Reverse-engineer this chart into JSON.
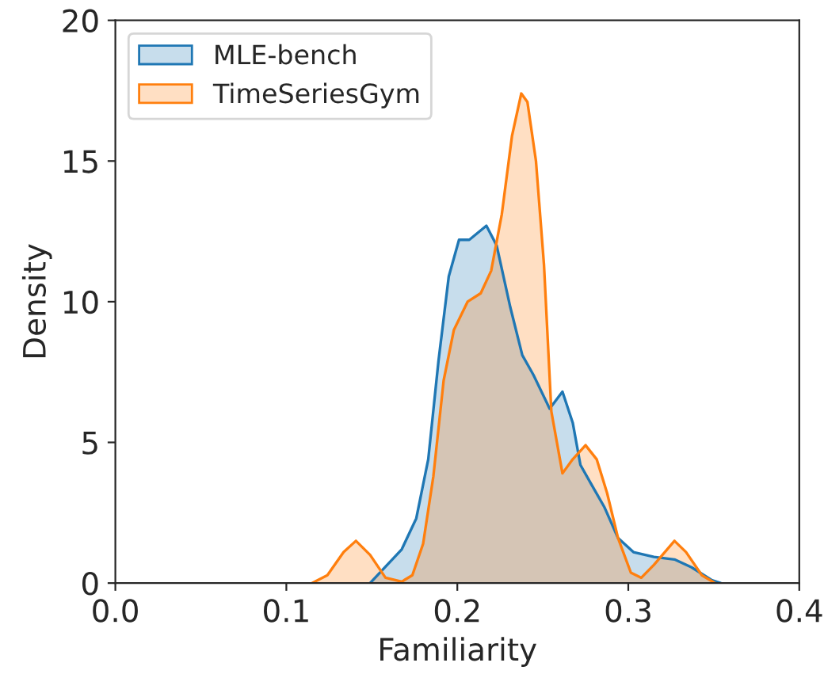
{
  "chart_data": {
    "type": "area",
    "xlabel": "Familiarity",
    "ylabel": "Density",
    "xlim": [
      0,
      0.4
    ],
    "xticks": [
      {
        "value": 0,
        "label": "0.0"
      },
      0.1,
      0.2,
      0.3,
      0.4
    ],
    "ylim": [
      0,
      20
    ],
    "yticks": [
      0,
      5,
      10,
      15,
      20
    ],
    "grid": false,
    "legend": "top left",
    "series": [
      {
        "name": "MLE-bench",
        "color": "#1f77b4",
        "x": [
          0.149,
          0.1675,
          0.176,
          0.183,
          0.189,
          0.195,
          0.201,
          0.207,
          0.217,
          0.223,
          0.231,
          0.238,
          0.2445,
          0.254,
          0.2615,
          0.2675,
          0.272,
          0.2785,
          0.286,
          0.294,
          0.303,
          0.315,
          0.327,
          0.337,
          0.349,
          0.354
        ],
        "values": [
          0,
          1.2,
          2.3,
          4.4,
          7.9,
          10.9,
          12.2,
          12.2,
          12.7,
          12.0,
          9.8,
          8.1,
          7.4,
          6.2,
          6.8,
          5.7,
          4.2,
          3.5,
          2.7,
          1.6,
          1.1,
          0.93,
          0.84,
          0.56,
          0.1,
          0
        ]
      },
      {
        "name": "TimeSeriesGym",
        "color": "#ff7f0e",
        "x": [
          0.115,
          0.124,
          0.1335,
          0.1407,
          0.149,
          0.158,
          0.1675,
          0.1737,
          0.18,
          0.186,
          0.192,
          0.198,
          0.206,
          0.2137,
          0.2198,
          0.226,
          0.232,
          0.2374,
          0.241,
          0.246,
          0.2507,
          0.255,
          0.2615,
          0.2675,
          0.275,
          0.2815,
          0.2876,
          0.294,
          0.3015,
          0.3076,
          0.315,
          0.327,
          0.3338,
          0.343,
          0.3507
        ],
        "values": [
          0,
          0.28,
          1.1,
          1.5,
          1.0,
          0.19,
          0.05,
          0.28,
          1.4,
          3.8,
          7.2,
          9.0,
          10.0,
          10.3,
          11.1,
          13.1,
          15.9,
          17.4,
          17.1,
          15.0,
          11.3,
          6.1,
          3.9,
          4.4,
          4.9,
          4.4,
          3.2,
          1.6,
          0.37,
          0.19,
          0.65,
          1.5,
          1.1,
          0.28,
          0
        ]
      }
    ]
  }
}
